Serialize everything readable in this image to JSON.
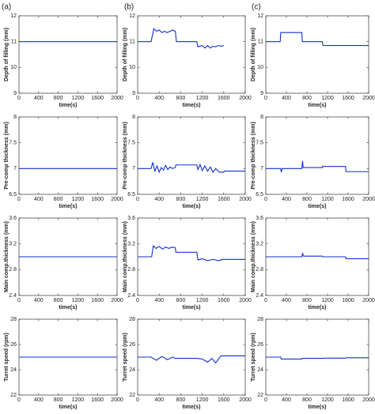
{
  "panel_labels": [
    "(a)",
    "(b)",
    "(c)"
  ],
  "chart_data": [
    {
      "type": "line",
      "ylabel": "Depth of filling (mm)",
      "xlabel": "time(s)",
      "xlim": [
        0,
        2000
      ],
      "xticks": [
        0,
        400,
        800,
        1200,
        1600,
        2000
      ],
      "ylim": [
        9,
        12
      ],
      "yticks": [
        9,
        10,
        11,
        12
      ],
      "series": [
        {
          "color": "#1030d0",
          "x": [
            0,
            2000
          ],
          "values": [
            11,
            11
          ]
        }
      ]
    },
    {
      "type": "line",
      "ylabel": "Depth of filling (mm)",
      "xlabel": "time(s)",
      "xlim": [
        0,
        2000
      ],
      "xticks": [
        0,
        400,
        800,
        1200,
        1600,
        2000
      ],
      "ylim": [
        9,
        12
      ],
      "yticks": [
        9,
        10,
        11,
        12
      ],
      "series": [
        {
          "color": "#1030d0",
          "x": [
            0,
            250,
            300,
            350,
            400,
            450,
            500,
            550,
            600,
            650,
            700,
            720,
            1100,
            1120,
            1200,
            1250,
            1300,
            1350,
            1400,
            1450,
            1500,
            1550,
            1600
          ],
          "values": [
            11,
            11,
            11.5,
            11.4,
            11.45,
            11.35,
            11.4,
            11.35,
            11.4,
            11.45,
            11.4,
            11.0,
            11.0,
            10.8,
            10.85,
            10.75,
            10.85,
            10.75,
            10.82,
            10.8,
            10.85,
            10.82,
            10.85
          ]
        }
      ]
    },
    {
      "type": "line",
      "ylabel": "Depth of filling (mm)",
      "xlabel": "time(s)",
      "xlim": [
        0,
        2000
      ],
      "xticks": [
        0,
        400,
        800,
        1200,
        1600,
        2000
      ],
      "ylim": [
        9,
        12
      ],
      "yticks": [
        9,
        10,
        11,
        12
      ],
      "series": [
        {
          "color": "#1030d0",
          "x": [
            0,
            280,
            290,
            700,
            710,
            1100,
            1110,
            2000
          ],
          "values": [
            11,
            11,
            11.35,
            11.35,
            11.0,
            11.0,
            10.85,
            10.85
          ]
        }
      ]
    },
    {
      "type": "line",
      "ylabel": "Pre-comp thickness (mm)",
      "xlabel": "time(s)",
      "xlim": [
        0,
        2000
      ],
      "xticks": [
        0,
        400,
        800,
        1200,
        1600,
        2000
      ],
      "ylim": [
        6.5,
        8
      ],
      "yticks": [
        6.5,
        7,
        7.5,
        8
      ],
      "series": [
        {
          "color": "#1030d0",
          "x": [
            0,
            2000
          ],
          "values": [
            7,
            7
          ]
        }
      ]
    },
    {
      "type": "line",
      "ylabel": "Pre-comp thickness (mm)",
      "xlabel": "time(s)",
      "xlim": [
        0,
        2000
      ],
      "xticks": [
        0,
        400,
        800,
        1200,
        1600,
        2000
      ],
      "ylim": [
        6.5,
        8
      ],
      "yticks": [
        6.5,
        7,
        7.5,
        8
      ],
      "series": [
        {
          "color": "#1030d0",
          "x": [
            0,
            250,
            280,
            320,
            360,
            400,
            440,
            480,
            520,
            560,
            600,
            650,
            700,
            710,
            1100,
            1120,
            1160,
            1200,
            1250,
            1300,
            1350,
            1400,
            1450,
            1500,
            1520,
            1600,
            1610,
            2000
          ],
          "values": [
            7,
            7,
            7.12,
            6.95,
            7.05,
            6.93,
            7.02,
            6.97,
            7.06,
            6.98,
            7.03,
            7.0,
            7.02,
            7.07,
            7.07,
            6.98,
            7.08,
            6.96,
            7.05,
            6.95,
            7.03,
            6.93,
            7.0,
            6.95,
            6.93,
            6.93,
            6.95,
            6.95
          ]
        }
      ]
    },
    {
      "type": "line",
      "ylabel": "Pre-comp thickness (mm)",
      "xlabel": "time(s)",
      "xlim": [
        0,
        2000
      ],
      "xticks": [
        0,
        400,
        800,
        1200,
        1600,
        2000
      ],
      "ylim": [
        6.5,
        8
      ],
      "yticks": [
        6.5,
        7,
        7.5,
        8
      ],
      "series": [
        {
          "color": "#1030d0",
          "x": [
            0,
            290,
            300,
            320,
            330,
            700,
            715,
            725,
            740,
            1100,
            1110,
            1125,
            1550,
            1560,
            2000
          ],
          "values": [
            7,
            7,
            6.93,
            7.0,
            7.0,
            7.0,
            7.15,
            7.02,
            7.02,
            7.02,
            7.05,
            7.04,
            7.04,
            6.94,
            6.94
          ]
        }
      ]
    },
    {
      "type": "line",
      "ylabel": "Main comp.thickness (mm)",
      "xlabel": "time(s)",
      "xlim": [
        0,
        2000
      ],
      "xticks": [
        0,
        400,
        800,
        1200,
        1600,
        2000
      ],
      "ylim": [
        2.4,
        3.6
      ],
      "yticks": [
        2.4,
        2.8,
        3.2,
        3.6
      ],
      "series": [
        {
          "color": "#1030d0",
          "x": [
            0,
            2000
          ],
          "values": [
            3,
            3
          ]
        }
      ]
    },
    {
      "type": "line",
      "ylabel": "Main comp.thickness (mm)",
      "xlabel": "time(s)",
      "xlim": [
        0,
        2000
      ],
      "xticks": [
        0,
        400,
        800,
        1200,
        1600,
        2000
      ],
      "ylim": [
        2.4,
        3.6
      ],
      "yticks": [
        2.4,
        2.8,
        3.2,
        3.6
      ],
      "series": [
        {
          "color": "#1030d0",
          "x": [
            0,
            260,
            290,
            340,
            400,
            460,
            520,
            580,
            640,
            700,
            710,
            1100,
            1120,
            1200,
            1300,
            1400,
            1500,
            1550,
            1560,
            2000
          ],
          "values": [
            3,
            3,
            3.17,
            3.13,
            3.16,
            3.12,
            3.15,
            3.13,
            3.15,
            3.14,
            3.07,
            3.07,
            2.95,
            2.97,
            2.94,
            2.96,
            2.94,
            2.95,
            2.96,
            2.96
          ]
        }
      ]
    },
    {
      "type": "line",
      "ylabel": "Main comp.thickness (mm)",
      "xlabel": "time(s)",
      "xlim": [
        0,
        2000
      ],
      "xticks": [
        0,
        400,
        800,
        1200,
        1600,
        2000
      ],
      "ylim": [
        2.4,
        3.6
      ],
      "yticks": [
        2.4,
        2.8,
        3.2,
        3.6
      ],
      "series": [
        {
          "color": "#1030d0",
          "x": [
            0,
            700,
            715,
            730,
            1100,
            1110,
            1550,
            1560,
            2000
          ],
          "values": [
            3,
            3,
            3.06,
            3.01,
            3.01,
            3.0,
            3.0,
            2.97,
            2.97
          ]
        }
      ]
    },
    {
      "type": "line",
      "ylabel": "Turret speed (rpm)",
      "xlabel": "time(s)",
      "xlim": [
        0,
        2000
      ],
      "xticks": [
        0,
        400,
        800,
        1200,
        1600,
        2000
      ],
      "ylim": [
        22,
        28
      ],
      "yticks": [
        22,
        24,
        26,
        28
      ],
      "series": [
        {
          "color": "#1030d0",
          "x": [
            0,
            2000
          ],
          "values": [
            25,
            25
          ]
        }
      ]
    },
    {
      "type": "line",
      "ylabel": "Turret speed (rpm)",
      "xlabel": "time(s)",
      "xlim": [
        0,
        2000
      ],
      "xticks": [
        0,
        400,
        800,
        1200,
        1600,
        2000
      ],
      "ylim": [
        22,
        28
      ],
      "yticks": [
        22,
        24,
        26,
        28
      ],
      "series": [
        {
          "color": "#1030d0",
          "x": [
            0,
            250,
            350,
            450,
            550,
            650,
            700,
            1100,
            1200,
            1300,
            1380,
            1450,
            1520,
            1550,
            2000
          ],
          "values": [
            25,
            25,
            24.75,
            25.05,
            24.8,
            25.0,
            24.9,
            24.9,
            24.85,
            24.6,
            24.9,
            24.55,
            24.95,
            25.1,
            25.1
          ]
        }
      ]
    },
    {
      "type": "line",
      "ylabel": "Turret speed (rpm)",
      "xlabel": "time(s)",
      "xlim": [
        0,
        2000
      ],
      "xticks": [
        0,
        400,
        800,
        1200,
        1600,
        2000
      ],
      "ylim": [
        22,
        28
      ],
      "yticks": [
        22,
        24,
        26,
        28
      ],
      "series": [
        {
          "color": "#1030d0",
          "x": [
            0,
            290,
            300,
            700,
            710,
            1100,
            1110,
            1550,
            1560,
            2000
          ],
          "values": [
            25,
            25,
            24.85,
            24.85,
            24.9,
            24.9,
            24.92,
            24.92,
            24.95,
            24.95
          ]
        }
      ]
    }
  ]
}
